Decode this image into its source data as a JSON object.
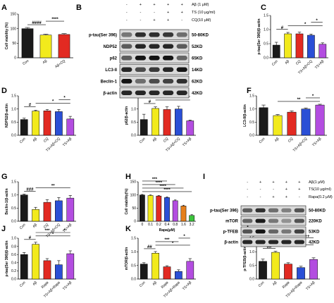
{
  "colors": {
    "con": "#1a1a1a",
    "abeta": "#f2ea1c",
    "cq": "#e22a22",
    "ts_ab_cq": "#2a4fd6",
    "ts_ab": "#b34de0",
    "rapa": "#e22a22",
    "ts_ab_rapa": "#2a4fd6"
  },
  "chart_data": [
    {
      "id": "A",
      "type": "bar",
      "categories": [
        "Con",
        "Aβ",
        "Aβ+CQ"
      ],
      "values": [
        100,
        78,
        80
      ],
      "errors": [
        4,
        3,
        3
      ],
      "ylabel": "Cell viability (%)",
      "ylim": [
        0,
        150
      ],
      "yticks": [
        0,
        50,
        100,
        150
      ],
      "annotations": [
        {
          "text": "####",
          "from": 0,
          "to": 1
        },
        {
          "text": "****",
          "from": 1,
          "to": 2
        }
      ],
      "colors": [
        "#1a1a1a",
        "#f2ea1c",
        "#e22a22"
      ]
    },
    {
      "id": "C",
      "type": "bar",
      "categories": [
        "Con",
        "Aβ",
        "CQ",
        "TS+Aβ+CQ",
        "TS+Aβ"
      ],
      "values": [
        0.45,
        0.85,
        0.85,
        0.8,
        0.48
      ],
      "errors": [
        0.1,
        0.05,
        0.06,
        0.04,
        0.05
      ],
      "ylabel": "p-tau(Ser 396)/β-actin",
      "ylim": [
        0,
        1.5
      ],
      "yticks": [
        0.0,
        0.5,
        1.0,
        1.5
      ],
      "annotations": [
        {
          "text": "#",
          "from": 0,
          "to": 1
        },
        {
          "text": "*",
          "from": 1,
          "to": 4
        },
        {
          "text": "*",
          "from": 3,
          "to": 4
        }
      ],
      "colors": [
        "#1a1a1a",
        "#f2ea1c",
        "#e22a22",
        "#2a4fd6",
        "#b34de0"
      ]
    },
    {
      "id": "D",
      "type": "bar",
      "categories": [
        "Con",
        "Aβ",
        "CQ",
        "TS+Aβ+CQ",
        "TS+Aβ"
      ],
      "values": [
        0.6,
        0.92,
        0.93,
        0.9,
        0.62
      ],
      "errors": [
        0.05,
        0.03,
        0.05,
        0.08,
        0.1
      ],
      "ylabel": "NDP52/β-actin",
      "ylim": [
        0,
        1.5
      ],
      "yticks": [
        0.0,
        0.5,
        1.0,
        1.5
      ],
      "annotations": [
        {
          "text": "#",
          "from": 0,
          "to": 1
        },
        {
          "text": "*",
          "from": 1,
          "to": 4
        },
        {
          "text": "*",
          "from": 3,
          "to": 4
        }
      ],
      "colors": [
        "#1a1a1a",
        "#f2ea1c",
        "#e22a22",
        "#2a4fd6",
        "#b34de0"
      ]
    },
    {
      "id": "E",
      "type": "bar",
      "categories": [
        "Con",
        "Aβ",
        "CQ",
        "TS+Aβ+CQ",
        "TS+Aβ"
      ],
      "values": [
        0.6,
        1.02,
        0.98,
        1.0,
        0.55
      ],
      "errors": [
        0.2,
        0.06,
        0.1,
        0.1,
        0.03
      ],
      "ylabel": "p62/β-actin",
      "ylim": [
        0,
        1.5
      ],
      "yticks": [
        0.0,
        0.5,
        1.0,
        1.5
      ],
      "annotations": [
        {
          "text": "#",
          "from": 0,
          "to": 1
        },
        {
          "text": "*",
          "from": 1,
          "to": 4
        },
        {
          "text": "*",
          "from": 3,
          "to": 4
        }
      ],
      "colors": [
        "#1a1a1a",
        "#f2ea1c",
        "#e22a22",
        "#2a4fd6",
        "#b34de0"
      ]
    },
    {
      "id": "F",
      "type": "bar",
      "categories": [
        "Con",
        "Aβ",
        "CQ",
        "TS+Aβ+CQ",
        "TS+Aβ"
      ],
      "values": [
        1.05,
        0.75,
        0.88,
        1.0,
        1.15
      ],
      "errors": [
        0.1,
        0.04,
        0.05,
        0.04,
        0.03
      ],
      "ylabel": "LC3-II/β-actin",
      "ylim": [
        0,
        1.5
      ],
      "yticks": [
        0.0,
        0.5,
        1.0,
        1.5
      ],
      "annotations": [
        {
          "text": "**",
          "from": 1,
          "to": 4
        },
        {
          "text": "*",
          "from": 3,
          "to": 4
        }
      ],
      "colors": [
        "#1a1a1a",
        "#f2ea1c",
        "#e22a22",
        "#2a4fd6",
        "#b34de0"
      ]
    },
    {
      "id": "G",
      "type": "bar",
      "categories": [
        "Con",
        "Aβ",
        "CQ",
        "TS+Aβ+CQ",
        "TS+Aβ"
      ],
      "values": [
        1.0,
        0.45,
        0.72,
        0.78,
        0.88
      ],
      "errors": [
        0.03,
        0.08,
        0.1,
        0.12,
        0.1
      ],
      "ylabel": "Beclin-1/β-actin",
      "ylim": [
        0,
        1.5
      ],
      "yticks": [
        0.0,
        0.5,
        1.0,
        1.5
      ],
      "annotations": [
        {
          "text": "###",
          "from": 0,
          "to": 1
        },
        {
          "text": "**",
          "from": 1,
          "to": 4
        }
      ],
      "colors": [
        "#1a1a1a",
        "#f2ea1c",
        "#e22a22",
        "#2a4fd6",
        "#b34de0"
      ]
    },
    {
      "id": "H",
      "type": "bar",
      "categories": [
        "0",
        "0.1",
        "0.2",
        "0.4",
        "0.8",
        "1.6",
        "3.2"
      ],
      "values": [
        100,
        98,
        96,
        90,
        78,
        58,
        22
      ],
      "errors": [
        2,
        2,
        2,
        3,
        3,
        3,
        3
      ],
      "ylabel": "Cell viability(%)",
      "xlabel": "Rapa(μM)",
      "ylim": [
        0,
        150
      ],
      "yticks": [
        0,
        50,
        100,
        150
      ],
      "annotations": [
        {
          "text": "****",
          "from": 0,
          "to": 6
        },
        {
          "text": "****",
          "from": 0,
          "to": 5
        },
        {
          "text": "****",
          "from": 0,
          "to": 4
        },
        {
          "text": "***",
          "from": 0,
          "to": 3
        }
      ],
      "colors": [
        "#1a1a1a",
        "#f2ea1c",
        "#e22a22",
        "#2a4fd6",
        "#b34de0",
        "#e57f1c",
        "#3cc43c"
      ]
    },
    {
      "id": "J",
      "type": "bar",
      "categories": [
        "Con",
        "Aβ",
        "Rapa",
        "TS+Aβ+Rapa",
        "TS+Aβ"
      ],
      "values": [
        0.6,
        0.85,
        0.45,
        0.35,
        0.62
      ],
      "errors": [
        0.05,
        0.05,
        0.05,
        0.1,
        0.07
      ],
      "ylabel": "p-tau(Ser 396)/β-actin",
      "ylim": [
        0,
        1.0
      ],
      "yticks": [
        0.0,
        0.2,
        0.4,
        0.6,
        0.8,
        1.0
      ],
      "annotations": [
        {
          "text": "#",
          "from": 0,
          "to": 1
        },
        {
          "text": "*",
          "from": 1,
          "to": 4
        },
        {
          "text": "***",
          "from": 1,
          "to": 3
        },
        {
          "text": "*",
          "from": 3,
          "to": 4
        }
      ],
      "colors": [
        "#1a1a1a",
        "#f2ea1c",
        "#e22a22",
        "#2a4fd6",
        "#b34de0"
      ]
    },
    {
      "id": "K",
      "type": "bar",
      "categories": [
        "Con",
        "Aβ",
        "Rapa",
        "TS+Aβ+Rapa",
        "TS+Aβ"
      ],
      "values": [
        0.55,
        0.95,
        0.45,
        0.28,
        0.65
      ],
      "errors": [
        0.05,
        0.06,
        0.04,
        0.06,
        0.1
      ],
      "ylabel": "mTOR/β-actin",
      "ylim": [
        0,
        1.5
      ],
      "yticks": [
        0.0,
        0.5,
        1.0,
        1.5
      ],
      "annotations": [
        {
          "text": "##",
          "from": 0,
          "to": 1
        },
        {
          "text": "*",
          "from": 1,
          "to": 4
        },
        {
          "text": "***",
          "from": 1,
          "to": 3
        },
        {
          "text": "*",
          "from": 3,
          "to": 4
        }
      ],
      "colors": [
        "#1a1a1a",
        "#f2ea1c",
        "#e22a22",
        "#2a4fd6",
        "#b34de0"
      ]
    },
    {
      "id": "L",
      "type": "bar",
      "categories": [
        "Con",
        "Aβ",
        "Rapa",
        "TS+Aβ+Rapa",
        "TS+Aβ"
      ],
      "values": [
        0.65,
        0.98,
        0.55,
        0.42,
        0.72
      ],
      "errors": [
        0.08,
        0.04,
        0.05,
        0.05,
        0.06
      ],
      "ylabel": "p-TFEB/β-actin",
      "ylim": [
        0,
        1.5
      ],
      "yticks": [
        0.0,
        0.5,
        1.0,
        1.5
      ],
      "annotations": [
        {
          "text": "##",
          "from": 0,
          "to": 1
        },
        {
          "text": "*",
          "from": 1,
          "to": 4
        },
        {
          "text": "****",
          "from": 1,
          "to": 3
        },
        {
          "text": "++",
          "from": 3,
          "to": 4
        }
      ],
      "colors": [
        "#1a1a1a",
        "#f2ea1c",
        "#e22a22",
        "#2a4fd6",
        "#b34de0"
      ]
    }
  ],
  "blots": [
    {
      "id": "B",
      "treatments": [
        {
          "label": "Aβ (1 μM)",
          "marks": [
            "-",
            "+",
            "+",
            "+",
            "+"
          ]
        },
        {
          "label": "TS (10 μg/ml)",
          "marks": [
            "-",
            "-",
            "-",
            "+",
            "+"
          ]
        },
        {
          "label": "CQ(10 μM)",
          "marks": [
            "-",
            "-",
            "+",
            "+",
            "-"
          ]
        }
      ],
      "proteins": [
        {
          "name": "p-tau(Ser 396)",
          "kd": "50-80KD",
          "intensity": [
            0.45,
            0.85,
            0.85,
            0.8,
            0.5
          ]
        },
        {
          "name": "NDP52",
          "kd": "52KD",
          "intensity": [
            0.6,
            0.9,
            0.9,
            0.9,
            0.6
          ]
        },
        {
          "name": "p62",
          "kd": "65KD",
          "intensity": [
            0.6,
            1.0,
            1.0,
            1.0,
            0.55
          ]
        },
        {
          "name": "LC3-II",
          "kd": "14KD",
          "intensity": [
            0.9,
            0.7,
            0.8,
            0.9,
            1.0
          ]
        },
        {
          "name": "Beclin-1",
          "kd": "62KD",
          "intensity": [
            1.0,
            0.5,
            0.7,
            0.75,
            0.85
          ]
        },
        {
          "name": "β-actin",
          "kd": "42KD",
          "intensity": [
            0.9,
            0.9,
            0.9,
            0.9,
            0.9
          ]
        }
      ]
    },
    {
      "id": "I",
      "treatments": [
        {
          "label": "Aβ(1 μM)",
          "marks": [
            "-",
            "+",
            "+",
            "+",
            "+"
          ]
        },
        {
          "label": "TS(10 μg/ml)",
          "marks": [
            "-",
            "-",
            "-",
            "+",
            "+"
          ]
        },
        {
          "label": "Rapa(0.2 μM)",
          "marks": [
            "-",
            "-",
            "+",
            "+",
            "-"
          ]
        }
      ],
      "proteins": [
        {
          "name": "p-tau(Ser 396)",
          "kd": "50-80KD",
          "intensity": [
            0.6,
            0.85,
            0.5,
            0.4,
            0.65
          ]
        },
        {
          "name": "mTOR",
          "kd": "220KD",
          "intensity": [
            0.55,
            0.95,
            0.45,
            0.3,
            0.65
          ]
        },
        {
          "name": "p-TFEB",
          "kd": "53KD",
          "intensity": [
            0.65,
            1.0,
            0.55,
            0.45,
            0.75
          ]
        },
        {
          "name": "β-actin",
          "kd": "42KD",
          "intensity": [
            0.9,
            0.9,
            0.9,
            0.9,
            0.9
          ]
        }
      ]
    }
  ]
}
